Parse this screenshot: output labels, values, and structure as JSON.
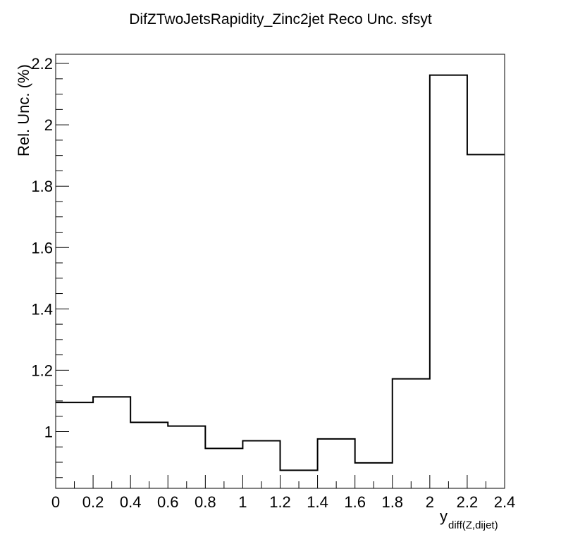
{
  "chart_data": {
    "type": "histogram",
    "title": "DifZTwoJetsRapidity_Zinc2jet Reco Unc. sfsyt",
    "xlabel": "y",
    "xlabel_subscript": "diff(Z,dijet)",
    "ylabel": "Rel. Unc. (%)",
    "xlim": [
      0,
      2.4
    ],
    "ylim": [
      0.815,
      2.23
    ],
    "x_ticks": [
      "0",
      "0.2",
      "0.4",
      "0.6",
      "0.8",
      "1",
      "1.2",
      "1.4",
      "1.6",
      "1.8",
      "2",
      "2.2",
      "2.4"
    ],
    "y_ticks": [
      "1",
      "1.2",
      "1.4",
      "1.6",
      "1.8",
      "2",
      "2.2"
    ],
    "bin_edges": [
      0,
      0.2,
      0.4,
      0.6,
      0.8,
      1.0,
      1.2,
      1.4,
      1.6,
      1.8,
      2.0,
      2.2,
      2.4
    ],
    "values": [
      1.095,
      1.113,
      1.03,
      1.018,
      0.945,
      0.97,
      0.874,
      0.976,
      0.898,
      1.172,
      2.162,
      1.903
    ],
    "grid": false,
    "line_color": "#000000"
  }
}
